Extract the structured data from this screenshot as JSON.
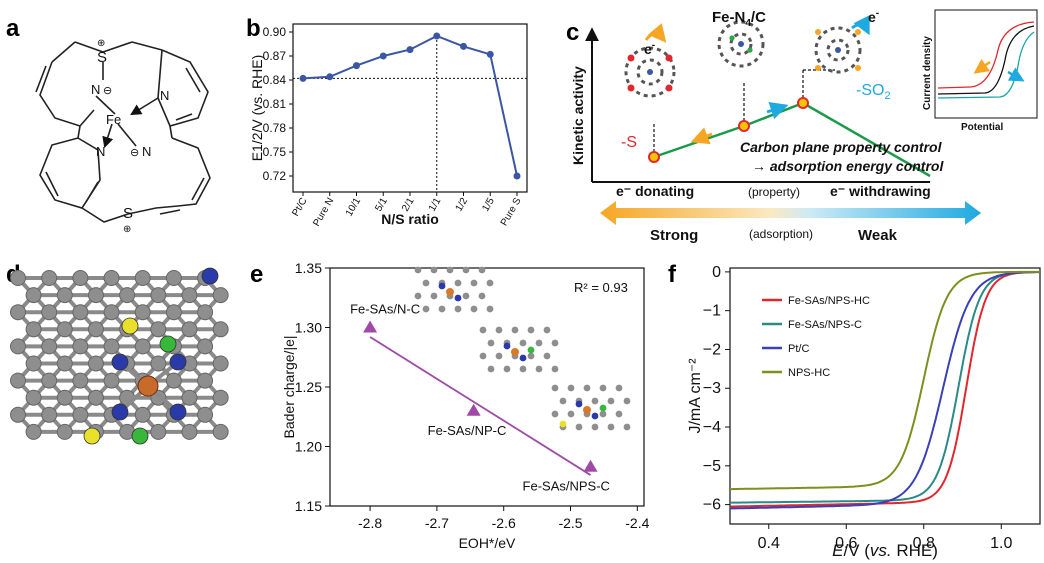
{
  "panel_letters": {
    "a": "a",
    "b": "b",
    "c": "c",
    "d": "d",
    "e": "e",
    "f": "f"
  },
  "panel_a": {
    "atoms": {
      "s_top": "S",
      "s_bottom": "S",
      "n_top": "N",
      "n_right": "N",
      "n_left": "N",
      "n_bottom": "N",
      "fe": "Fe",
      "plus": "⊕",
      "minus": "⊖"
    }
  },
  "panel_c": {
    "title_text": "Fe-N",
    "title_sub": "4",
    "title_tail": "/C",
    "electron": "e",
    "electron_sup": "-",
    "minus_s": "-S",
    "minus_so2": "-SO",
    "so2_sub": "2",
    "ylabel": "Kinetic activity",
    "caption_line1": "Carbon plane property control",
    "caption_line2": "→ adsorption energy control",
    "donating": "e⁻ donating",
    "property": "(property)",
    "withdrawing": "e⁻ withdrawing",
    "strong": "Strong",
    "adsorption": "(adsorption)",
    "weak": "Weak",
    "inset_ylabel": "Current density",
    "inset_xlabel": "Potential",
    "colors": {
      "line": "#1b9a4a",
      "node": "#f5c400",
      "arrow_orange": "#f5a623",
      "arrow_blue": "#1ea9e0"
    }
  },
  "chart_data": [
    {
      "type": "line",
      "panel": "b",
      "categories": [
        "Pt/C",
        "Pure N",
        "10/1",
        "5/1",
        "2/1",
        "1/1",
        "1/2",
        "1/5",
        "Pure S"
      ],
      "values": [
        0.842,
        0.844,
        0.858,
        0.87,
        0.878,
        0.895,
        0.882,
        0.872,
        0.72
      ],
      "xlabel": "N/S ratio",
      "ylabel": "E1/2/V (vs. RHE)",
      "ylim": [
        0.7,
        0.91
      ],
      "yticks": [
        0.72,
        0.75,
        0.78,
        0.81,
        0.84,
        0.87,
        0.9
      ],
      "hline": 0.842,
      "vline_category": "1/1",
      "color": "#3b56a5"
    },
    {
      "type": "scatter",
      "panel": "e",
      "points": [
        {
          "label": "Fe-SAs/N-C",
          "x": -2.8,
          "y": 1.3
        },
        {
          "label": "Fe-SAs/NP-C",
          "x": -2.645,
          "y": 1.23
        },
        {
          "label": "Fe-SAs/NPS-C",
          "x": -2.47,
          "y": 1.183
        }
      ],
      "fit": {
        "x": [
          -2.8,
          -2.47
        ],
        "y": [
          1.292,
          1.176
        ]
      },
      "annotation": "R² = 0.93",
      "xlabel": "EOH*/eV",
      "ylabel": "Bader charge/|e|",
      "xlim": [
        -2.86,
        -2.39
      ],
      "ylim": [
        1.15,
        1.35
      ],
      "xticks": [
        -2.8,
        -2.7,
        -2.6,
        -2.5,
        -2.4
      ],
      "yticks": [
        1.15,
        1.2,
        1.25,
        1.3,
        1.35
      ],
      "color": "#a04aa8"
    },
    {
      "type": "line",
      "panel": "f",
      "xlabel": "E/V (vs. RHE)",
      "ylabel": "J/mA cm⁻²",
      "xlim": [
        0.3,
        1.1
      ],
      "ylim": [
        -6.5,
        0.1
      ],
      "xticks": [
        0.4,
        0.6,
        0.8,
        1.0
      ],
      "yticks": [
        0,
        -1,
        -2,
        -3,
        -4,
        -5,
        -6
      ],
      "legend_position": "top-left",
      "series": [
        {
          "name": "Fe-SAs/NPS-HC",
          "color": "#e0282e",
          "jl": -6.05,
          "e_half": 0.91,
          "width": 0.025,
          "slope": 0.5
        },
        {
          "name": "Fe-SAs/NPS-C",
          "color": "#2a8a86",
          "jl": -5.95,
          "e_half": 0.89,
          "width": 0.027,
          "slope": 0.3
        },
        {
          "name": "Pt/C",
          "color": "#3b3fb8",
          "jl": -6.1,
          "e_half": 0.85,
          "width": 0.035,
          "slope": 0.55
        },
        {
          "name": "NPS-HC",
          "color": "#7f8f1f",
          "jl": -5.6,
          "e_half": 0.8,
          "width": 0.03,
          "slope": 0.4
        }
      ]
    }
  ]
}
